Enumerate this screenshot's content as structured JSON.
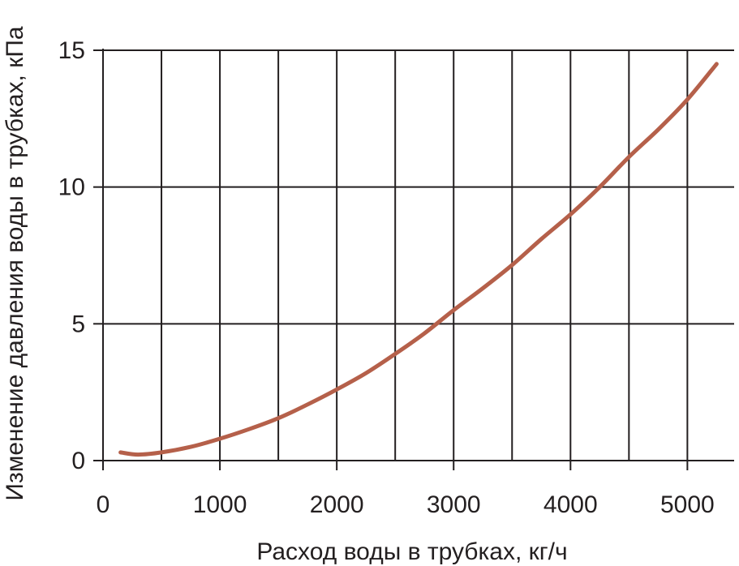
{
  "chart_data": {
    "type": "line",
    "xlabel": "Расход воды в трубках, кг/ч",
    "ylabel": "Изменение давления воды в трубках, кПа",
    "xlim": [
      0,
      5400
    ],
    "ylim": [
      0,
      15
    ],
    "x_ticks": [
      0,
      1000,
      2000,
      3000,
      4000,
      5000
    ],
    "y_ticks": [
      0,
      5,
      10,
      15
    ],
    "grid": true,
    "line_color": "#b5604a",
    "series": [
      {
        "x": [
          150,
          300,
          500,
          750,
          1000,
          1250,
          1500,
          1750,
          2000,
          2250,
          2500,
          2750,
          3000,
          3250,
          3500,
          3750,
          4000,
          4250,
          4500,
          4750,
          5000,
          5250
        ],
        "y": [
          0.3,
          0.22,
          0.3,
          0.5,
          0.8,
          1.15,
          1.55,
          2.05,
          2.6,
          3.2,
          3.9,
          4.65,
          5.5,
          6.3,
          7.15,
          8.1,
          9.0,
          10.0,
          11.1,
          12.1,
          13.2,
          14.5
        ]
      }
    ]
  }
}
